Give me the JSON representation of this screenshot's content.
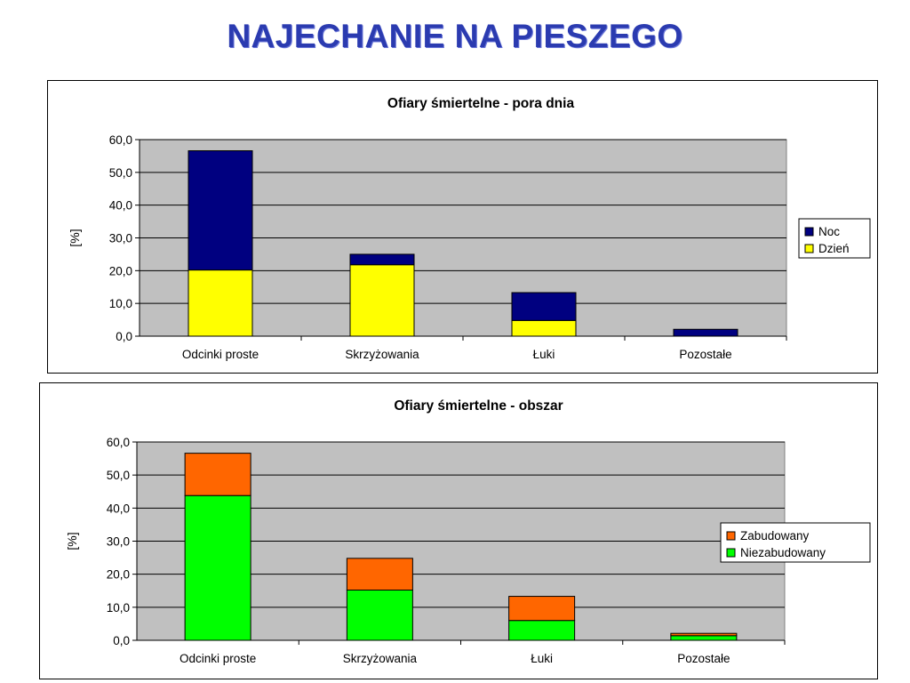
{
  "page": {
    "title": "NAJECHANIE NA PIESZEGO"
  },
  "chart_data": [
    {
      "type": "bar",
      "stacked": true,
      "title": "Ofiary śmiertelne - pora dnia",
      "xlabel": "",
      "ylabel": "[%]",
      "ylim": [
        0,
        60
      ],
      "ytick_step": 10,
      "ytick_labels": [
        "0,0",
        "10,0",
        "20,0",
        "30,0",
        "40,0",
        "50,0",
        "60,0"
      ],
      "grid": true,
      "legend_position": "right",
      "categories": [
        "Odcinki proste",
        "Skrzyżowania",
        "Łuki",
        "Pozostałe"
      ],
      "series": [
        {
          "name": "Dzień",
          "color": "#ffff00",
          "values": [
            20.2,
            21.8,
            4.8,
            0.0
          ]
        },
        {
          "name": "Noc",
          "color": "#000080",
          "values": [
            36.4,
            3.2,
            8.5,
            2.1
          ]
        }
      ],
      "legend_order": [
        "Noc",
        "Dzień"
      ]
    },
    {
      "type": "bar",
      "stacked": true,
      "title": "Ofiary śmiertelne - obszar",
      "xlabel": "",
      "ylabel": "[%]",
      "ylim": [
        0,
        60
      ],
      "ytick_step": 10,
      "ytick_labels": [
        "0,0",
        "10,0",
        "20,0",
        "30,0",
        "40,0",
        "50,0",
        "60,0"
      ],
      "grid": true,
      "legend_position": "right",
      "categories": [
        "Odcinki proste",
        "Skrzyżowania",
        "Łuki",
        "Pozostałe"
      ],
      "series": [
        {
          "name": "Niezabudowany",
          "color": "#00ff00",
          "values": [
            43.8,
            15.2,
            6.0,
            1.4
          ]
        },
        {
          "name": "Zabudowany",
          "color": "#ff6600",
          "values": [
            12.8,
            9.6,
            7.3,
            0.7
          ]
        }
      ],
      "legend_order": [
        "Zabudowany",
        "Niezabudowany"
      ]
    }
  ]
}
